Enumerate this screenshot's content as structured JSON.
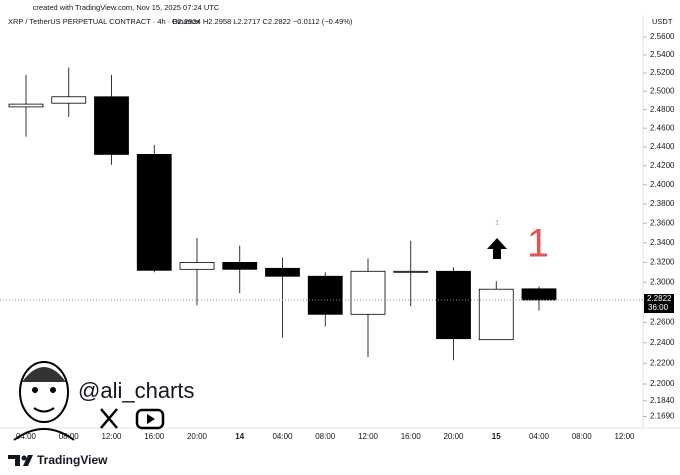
{
  "page": {
    "created": "created with TradingView.com, Nov 15, 2025 07:24 UTC"
  },
  "chart_data": {
    "type": "candlestick",
    "header": "XRP / TetherUS PERPETUAL CONTRACT · 4h · Binance",
    "ohlc_text": "O2.2934 H2.2958 L2.2717 C2.2822 −0.0112 (−0.49%)",
    "currency": "USDT",
    "countdown": "36:00",
    "categories": [
      "04:00",
      "08:00",
      "12:00",
      "16:00",
      "20:00",
      "14",
      "04:00",
      "08:00",
      "12:00",
      "16:00",
      "20:00",
      "15",
      "04:00",
      "08:00",
      "12:00"
    ],
    "open": [
      2.483,
      2.487,
      2.494,
      2.432,
      2.313,
      2.32,
      2.314,
      2.306,
      2.268,
      2.31,
      2.311,
      2.243,
      2.2934,
      null,
      null
    ],
    "high": [
      2.518,
      2.526,
      2.518,
      2.442,
      2.345,
      2.337,
      2.325,
      2.31,
      2.324,
      2.342,
      2.315,
      2.301,
      2.2958,
      null,
      null
    ],
    "low": [
      2.451,
      2.472,
      2.421,
      2.31,
      2.277,
      2.289,
      2.245,
      2.256,
      2.226,
      2.276,
      2.223,
      2.243,
      2.2717,
      null,
      null
    ],
    "close": [
      2.486,
      2.494,
      2.432,
      2.312,
      2.32,
      2.313,
      2.306,
      2.268,
      2.311,
      2.311,
      2.244,
      2.293,
      2.2822,
      null,
      null
    ],
    "up_color": "#ffffff",
    "down_color": "#000000",
    "log_scale": true,
    "ylim": [
      2.161,
      2.579
    ],
    "yticks": [
      {
        "value": 2.56,
        "label": "2.5600"
      },
      {
        "value": 2.54,
        "label": "2.5400"
      },
      {
        "value": 2.52,
        "label": "2.5200"
      },
      {
        "value": 2.5,
        "label": "2.5000"
      },
      {
        "value": 2.48,
        "label": "2.4800"
      },
      {
        "value": 2.46,
        "label": "2.4600"
      },
      {
        "value": 2.44,
        "label": "2.4400"
      },
      {
        "value": 2.42,
        "label": "2.4200"
      },
      {
        "value": 2.4,
        "label": "2.4000"
      },
      {
        "value": 2.38,
        "label": "2.3800"
      },
      {
        "value": 2.36,
        "label": "2.3600"
      },
      {
        "value": 2.34,
        "label": "2.3400"
      },
      {
        "value": 2.32,
        "label": "2.3200"
      },
      {
        "value": 2.3,
        "label": "2.3000"
      },
      {
        "value": 2.28,
        "label": "2.2800"
      },
      {
        "value": 2.26,
        "label": "2.2600"
      },
      {
        "value": 2.24,
        "label": "2.2400"
      },
      {
        "value": 2.22,
        "label": "2.2200"
      },
      {
        "value": 2.2,
        "label": "2.2000"
      },
      {
        "value": 2.184,
        "label": "2.1840"
      },
      {
        "value": 2.169,
        "label": "2.1690"
      }
    ],
    "annotations": [
      "1",
      "1"
    ]
  },
  "branding": {
    "handle": "@ali_charts",
    "logo_text": "TradingView"
  }
}
